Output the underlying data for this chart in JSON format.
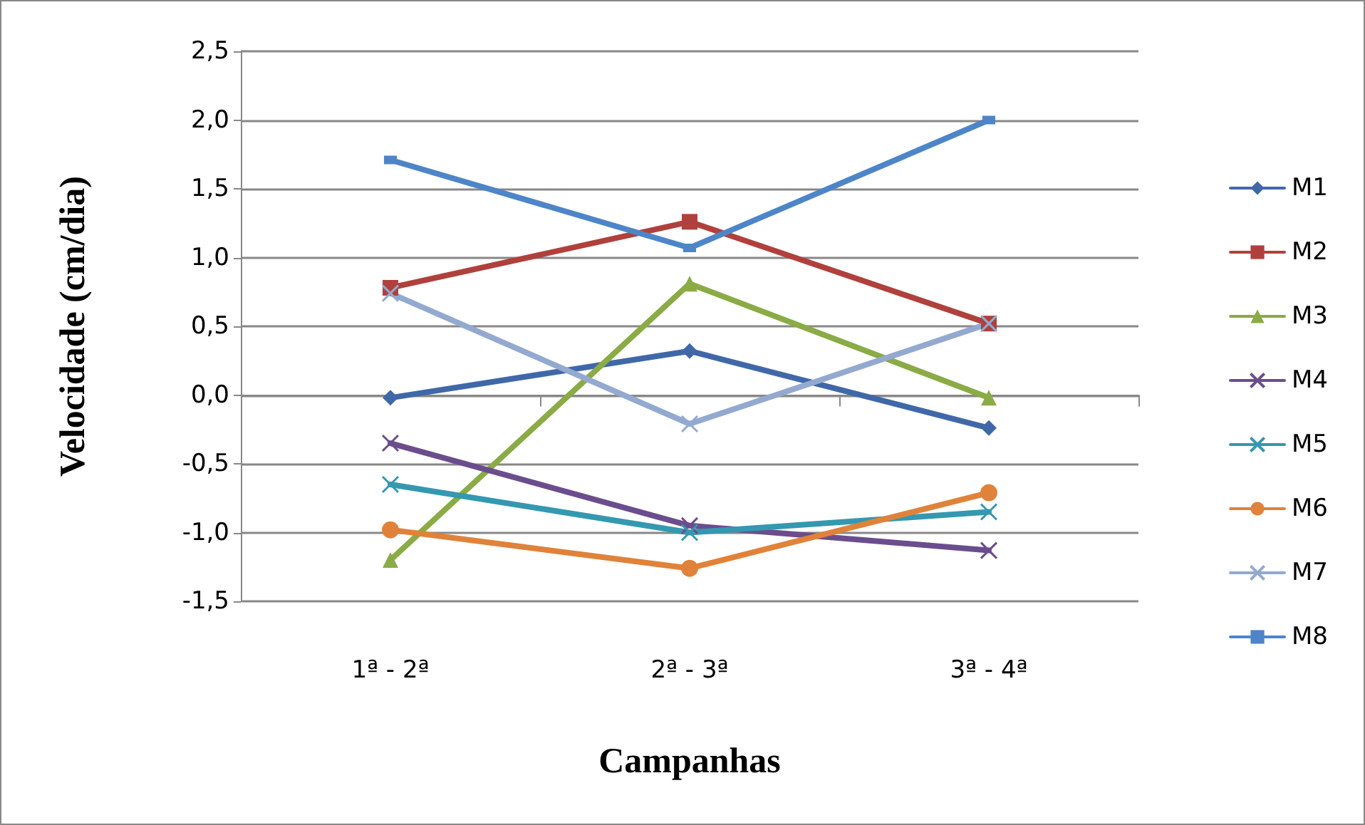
{
  "chart_data": {
    "type": "line",
    "xlabel": "Campanhas",
    "ylabel": "Velocidade (cm/dia)",
    "categories": [
      "1ª - 2ª",
      "2ª - 3ª",
      "3ª - 4ª"
    ],
    "ylim": [
      -1.5,
      2.5
    ],
    "yticks": [
      {
        "value": -1.5,
        "label": "-1,5"
      },
      {
        "value": -1,
        "label": "-1,0"
      },
      {
        "value": -0.5,
        "label": "-0,5"
      },
      {
        "value": 0,
        "label": "0,0"
      },
      {
        "value": 0.5,
        "label": "0,5"
      },
      {
        "value": 1,
        "label": "1,0"
      },
      {
        "value": 1.5,
        "label": "1,5"
      },
      {
        "value": 2,
        "label": "2,0"
      },
      {
        "value": 2.5,
        "label": "2,5"
      }
    ],
    "grid": "y",
    "legend": "right",
    "series": [
      {
        "name": "M1",
        "color": "#4068a8",
        "marker": "diamond",
        "values": [
          -0.02,
          0.32,
          -0.24
        ]
      },
      {
        "name": "M2",
        "color": "#b0403c",
        "marker": "square",
        "values": [
          0.78,
          1.26,
          0.52
        ]
      },
      {
        "name": "M3",
        "color": "#8aab45",
        "marker": "triangle",
        "values": [
          -1.2,
          0.81,
          -0.02
        ]
      },
      {
        "name": "M4",
        "color": "#6b4d8e",
        "marker": "cross",
        "values": [
          -0.35,
          -0.95,
          -1.13
        ]
      },
      {
        "name": "M5",
        "color": "#3498b0",
        "marker": "cross",
        "values": [
          -0.65,
          -1.0,
          -0.85
        ]
      },
      {
        "name": "M6",
        "color": "#e0823a",
        "marker": "circle",
        "values": [
          -0.98,
          -1.26,
          -0.71
        ]
      },
      {
        "name": "M7",
        "color": "#93a9d0",
        "marker": "cross",
        "values": [
          0.74,
          -0.21,
          0.52
        ]
      },
      {
        "name": "M8",
        "color": "#4d85c8",
        "marker": "square",
        "values": [
          1.71,
          1.07,
          2.0
        ]
      }
    ]
  }
}
